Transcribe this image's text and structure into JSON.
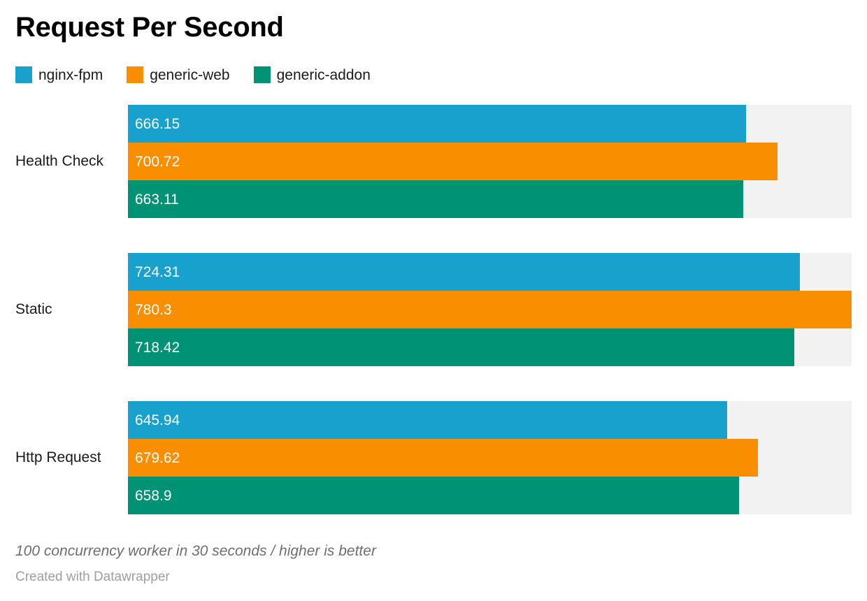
{
  "title": "Request Per Second",
  "chart_data": {
    "type": "bar",
    "orientation": "horizontal",
    "title": "Request Per Second",
    "categories": [
      "Health Check",
      "Static",
      "Http Request"
    ],
    "series": [
      {
        "name": "nginx-fpm",
        "color": "#18A1CD",
        "values": [
          666.15,
          724.31,
          645.94
        ]
      },
      {
        "name": "generic-web",
        "color": "#F98F00",
        "values": [
          700.72,
          780.3,
          679.62
        ]
      },
      {
        "name": "generic-addon",
        "color": "#009274",
        "values": [
          663.11,
          718.42,
          658.9
        ]
      }
    ],
    "xlim": [
      0,
      780.3
    ],
    "value_labels_shown": true,
    "legend_position": "top",
    "grid": false,
    "axis_ticks_shown": false
  },
  "legend": {
    "items": [
      {
        "label": "nginx-fpm",
        "color": "#18A1CD"
      },
      {
        "label": "generic-web",
        "color": "#F98F00"
      },
      {
        "label": "generic-addon",
        "color": "#009274"
      }
    ]
  },
  "footer": {
    "note": "100 concurrency worker in 30 seconds / higher is better",
    "attribution": "Created with Datawrapper"
  },
  "colors": {
    "background": "#FFFFFF",
    "track": "#F2F2F2",
    "title_text": "#000000",
    "label_text": "#1A1A1A",
    "bar_value_text": "#FFFFFF",
    "note_text": "#6E6E6E",
    "attribution_text": "#9E9E9E"
  }
}
